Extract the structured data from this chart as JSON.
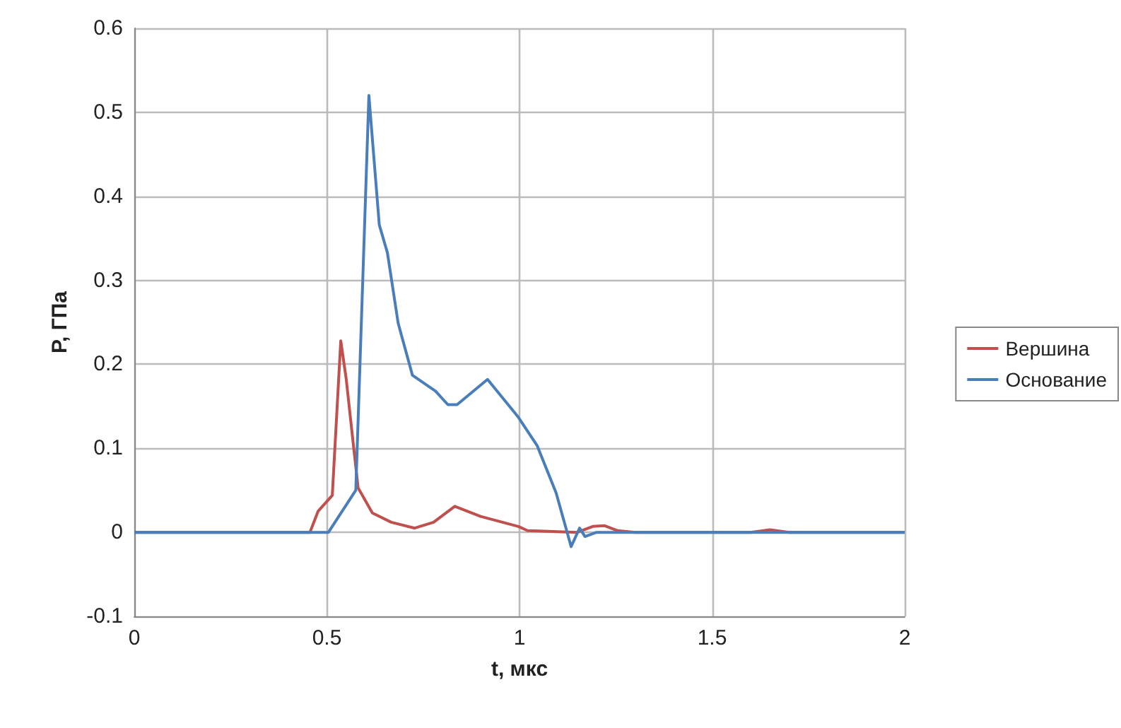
{
  "chart_data": {
    "type": "line",
    "xlabel": "t, мкс",
    "ylabel": "P, ГПа",
    "xlim": [
      0,
      2
    ],
    "xticks": [
      0,
      0.5,
      1,
      1.5,
      2
    ],
    "ylim": [
      -0.1,
      0.6
    ],
    "yticks": [
      -0.1,
      0,
      0.1,
      0.2,
      0.3,
      0.4,
      0.5,
      0.6
    ],
    "grid": true,
    "legend": "right",
    "marker": "none",
    "line_style": "solid",
    "series": [
      {
        "name": "Вершина",
        "color": "#c0504d",
        "x": [
          0,
          0.456,
          0.477,
          0.514,
          0.536,
          0.55,
          0.569,
          0.581,
          0.618,
          0.667,
          0.728,
          0.777,
          0.832,
          0.899,
          0.997,
          1.021,
          1.15,
          1.19,
          1.22,
          1.255,
          1.3,
          1.6,
          1.65,
          1.7,
          2
        ],
        "values": [
          0,
          0,
          0.025,
          0.044,
          0.228,
          0.183,
          0.103,
          0.053,
          0.023,
          0.012,
          0.005,
          0.012,
          0.031,
          0.019,
          0.007,
          0.002,
          0,
          0.007,
          0.008,
          0.002,
          0,
          0,
          0.003,
          0,
          0
        ]
      },
      {
        "name": "Основание",
        "color": "#4a7ebb",
        "x": [
          0,
          0.504,
          0.575,
          0.609,
          0.636,
          0.657,
          0.685,
          0.722,
          0.782,
          0.814,
          0.838,
          0.917,
          0.997,
          1.046,
          1.095,
          1.134,
          1.156,
          1.17,
          1.2,
          2
        ],
        "values": [
          0,
          0,
          0.05,
          0.52,
          0.366,
          0.333,
          0.249,
          0.187,
          0.168,
          0.152,
          0.152,
          0.182,
          0.137,
          0.103,
          0.047,
          -0.017,
          0.005,
          -0.005,
          0,
          0
        ]
      }
    ]
  }
}
